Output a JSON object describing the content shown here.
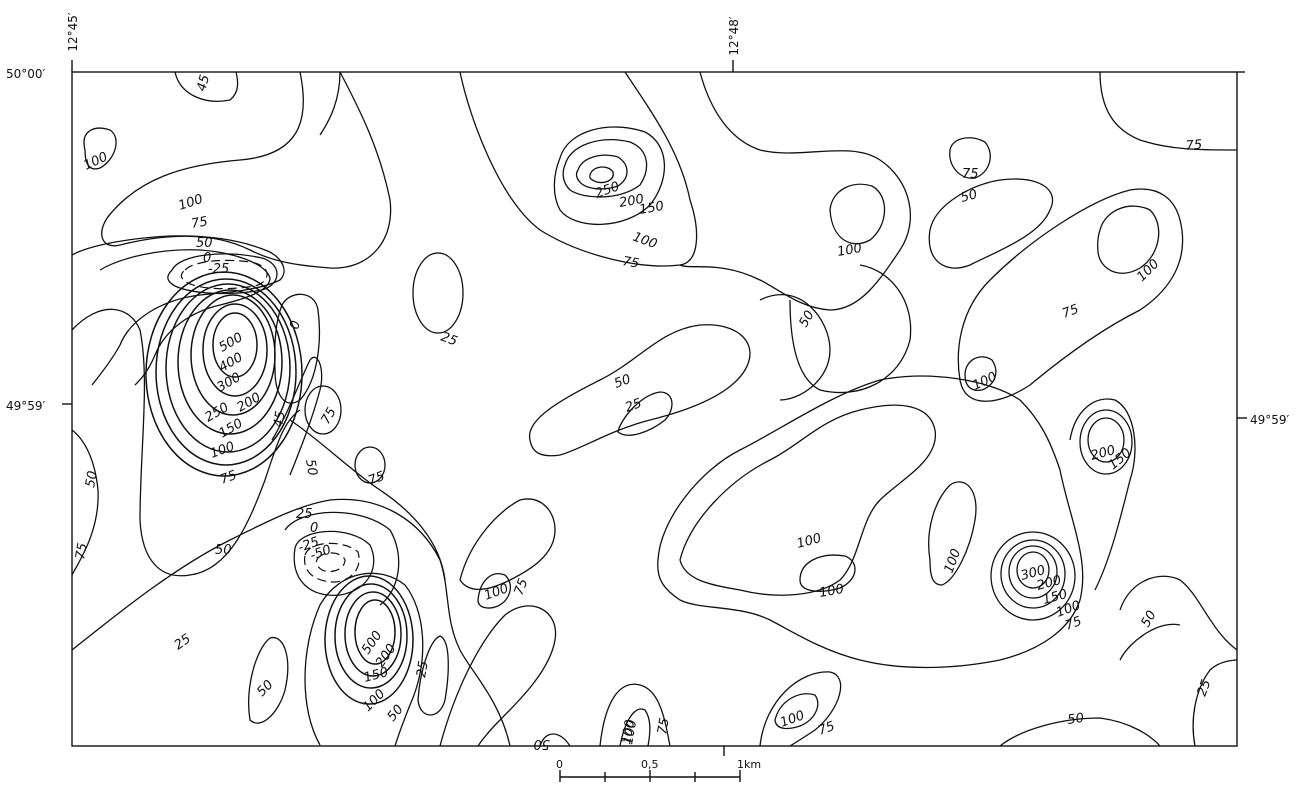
{
  "coordinates": {
    "top_left_lon": "12°45′",
    "top_mid_lon": "12°48′",
    "top_lat": "50°00′",
    "left_mid_lat": "49°59′",
    "right_mid_lat": "49°59′"
  },
  "contour_labels": {
    "tl_45": "45",
    "tl_100": "100",
    "a_100": "100",
    "a_75": "75",
    "a_50": "50",
    "a_0": "0",
    "a_neg25": "-25",
    "a_500": "500",
    "a_400": "400",
    "a_300": "300",
    "a_250": "250",
    "a_200": "200",
    "a_150": "150",
    "a_100b": "100",
    "a_75b": "75",
    "a_50b": "50",
    "a_0b": "0",
    "a_45": "45",
    "a_75c": "75",
    "a_50c": "50",
    "a_75d": "75",
    "left_50": "50",
    "left_75": "75",
    "b_25": "25",
    "b_0": "0",
    "b_neg25": "-25",
    "b_neg50": "-50",
    "b_50": "50",
    "b_25b": "25",
    "c_500": "500",
    "c_200": "200",
    "c_150": "150",
    "c_100": "100",
    "c_50": "50",
    "c_50b": "50",
    "c_25": "25",
    "d_100": "100",
    "d_75": "75",
    "d_75b": "75",
    "n_250": "250",
    "n_200": "200",
    "n_150": "150",
    "n_100": "100",
    "n_75": "75",
    "n_100b": "100",
    "m_50": "50",
    "m_25": "25",
    "m_50b": "50",
    "r_75": "75",
    "r_50": "50",
    "r_75b": "75",
    "r_100": "100",
    "r_75c": "75",
    "r_100b": "100",
    "s_100": "100",
    "s_100b": "100",
    "s_100c": "100",
    "s_300": "300",
    "s_200": "200",
    "s_150": "150",
    "s_100d": "100",
    "s_75": "75",
    "e_200": "200",
    "e_150": "150",
    "e_50": "50",
    "e_25": "25",
    "e_50b": "50",
    "b2_25": "25",
    "b2_100": "100",
    "b2_75": "75",
    "b2_100b": "100",
    "b2_75b": "75"
  },
  "scale_bar": {
    "label_0": "0",
    "label_mid": "0,5",
    "label_end": "1km"
  }
}
